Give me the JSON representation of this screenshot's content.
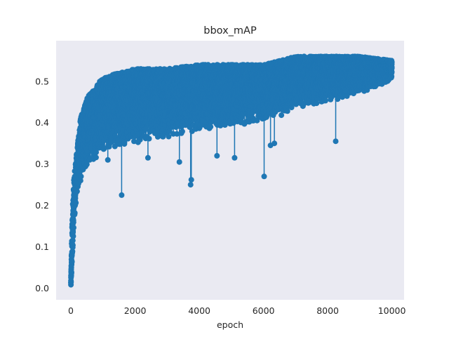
{
  "chart_data": {
    "type": "line",
    "title": "bbox_mAP",
    "xlabel": "epoch",
    "ylabel": "",
    "xlim": [
      -460,
      10380
    ],
    "ylim": [
      -0.028,
      0.598
    ],
    "xticks": [
      0,
      2000,
      4000,
      6000,
      8000,
      10000
    ],
    "xtick_labels": [
      "0",
      "2000",
      "4000",
      "6000",
      "8000",
      "10000"
    ],
    "yticks": [
      0.0,
      0.1,
      0.2,
      0.3,
      0.4,
      0.5
    ],
    "ytick_labels": [
      "0.0",
      "0.1",
      "0.2",
      "0.3",
      "0.4",
      "0.5"
    ],
    "grid": false,
    "background": "#eaeaf2",
    "series": [
      {
        "color": "#1f77b4",
        "marker": "circle",
        "n_points": 10000,
        "x_range": [
          0,
          10000
        ],
        "outline": [
          {
            "x": 0,
            "low": 0.0,
            "high": 0.02
          },
          {
            "x": 50,
            "low": 0.08,
            "high": 0.2
          },
          {
            "x": 100,
            "low": 0.17,
            "high": 0.27
          },
          {
            "x": 200,
            "low": 0.22,
            "high": 0.34
          },
          {
            "x": 300,
            "low": 0.26,
            "high": 0.41
          },
          {
            "x": 500,
            "low": 0.29,
            "high": 0.46
          },
          {
            "x": 1000,
            "low": 0.33,
            "high": 0.51
          },
          {
            "x": 2000,
            "low": 0.35,
            "high": 0.53
          },
          {
            "x": 3000,
            "low": 0.36,
            "high": 0.53
          },
          {
            "x": 4000,
            "low": 0.38,
            "high": 0.54
          },
          {
            "x": 5000,
            "low": 0.39,
            "high": 0.54
          },
          {
            "x": 6000,
            "low": 0.4,
            "high": 0.54
          },
          {
            "x": 7000,
            "low": 0.43,
            "high": 0.56
          },
          {
            "x": 8000,
            "low": 0.45,
            "high": 0.56
          },
          {
            "x": 9000,
            "low": 0.47,
            "high": 0.56
          },
          {
            "x": 10000,
            "low": 0.5,
            "high": 0.55
          }
        ],
        "outliers": [
          {
            "x": 1580,
            "y": 0.225
          },
          {
            "x": 1150,
            "y": 0.31
          },
          {
            "x": 3380,
            "y": 0.305
          },
          {
            "x": 3730,
            "y": 0.25
          },
          {
            "x": 3750,
            "y": 0.262
          },
          {
            "x": 5100,
            "y": 0.315
          },
          {
            "x": 6020,
            "y": 0.27
          },
          {
            "x": 6220,
            "y": 0.345
          },
          {
            "x": 6340,
            "y": 0.35
          },
          {
            "x": 8250,
            "y": 0.355
          },
          {
            "x": 2400,
            "y": 0.315
          },
          {
            "x": 4550,
            "y": 0.32
          },
          {
            "x": 300,
            "y": 0.26
          }
        ]
      }
    ]
  }
}
